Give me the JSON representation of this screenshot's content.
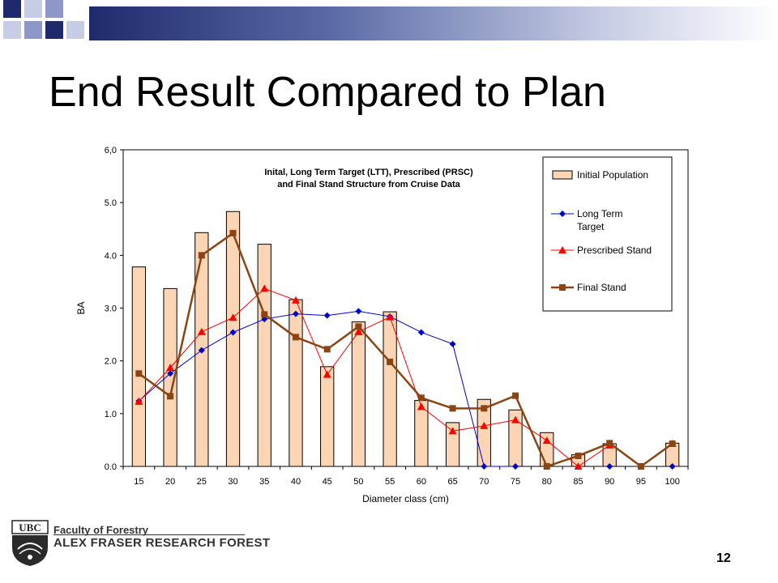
{
  "slide": {
    "title": "End Result Compared to Plan",
    "page_number": "12"
  },
  "footer": {
    "logo_text": "UBC",
    "faculty": "Faculty of Forestry",
    "research_forest": "ALEX FRASER RESEARCH FOREST"
  },
  "colors": {
    "title_bar": "#1f2a6d",
    "bar_fill": "#fcd5b4",
    "ltt": "#0000cc",
    "prsc": "#ff0000",
    "final": "#8b4513"
  },
  "chart_data": {
    "type": "bar",
    "title_lines": [
      "Inital, Long Term Target (LTT), Prescribed (PRSC)",
      "and Final Stand Structure from Cruise Data"
    ],
    "xlabel": "Diameter class (cm)",
    "ylabel": "BA",
    "ylim": [
      0,
      6
    ],
    "yticks": [
      "0.0",
      "1.0",
      "2.0",
      "3.0",
      "4.0",
      "5.0",
      "6,0"
    ],
    "y_tick_values": [
      0,
      1,
      2,
      3,
      4,
      5,
      6
    ],
    "grid": false,
    "legend_position": "top-right",
    "categories": [
      "15",
      "20",
      "25",
      "30",
      "35",
      "40",
      "45",
      "50",
      "55",
      "60",
      "65",
      "70",
      "75",
      "80",
      "85",
      "90",
      "95",
      "100"
    ],
    "series": [
      {
        "name": "Initial Population",
        "type": "bar",
        "color": "#fcd5b4",
        "values": [
          3.78,
          3.37,
          4.43,
          4.83,
          4.21,
          3.16,
          1.89,
          2.74,
          2.93,
          1.25,
          0.83,
          1.27,
          1.07,
          0.64,
          0.22,
          0.43,
          0.0,
          0.44
        ]
      },
      {
        "name": "Long Term Target",
        "type": "line",
        "marker": "diamond",
        "color": "#0000cc",
        "values": [
          1.24,
          1.76,
          2.2,
          2.54,
          2.79,
          2.89,
          2.86,
          2.94,
          2.84,
          2.54,
          2.32,
          0.0,
          0.0,
          null,
          null,
          0.0,
          null,
          0.0
        ]
      },
      {
        "name": "Prescribed Stand",
        "type": "line",
        "marker": "triangle",
        "color": "#ff0000",
        "values": [
          1.23,
          1.87,
          2.55,
          2.82,
          3.37,
          3.15,
          1.74,
          2.55,
          2.83,
          1.13,
          0.67,
          0.77,
          0.88,
          0.49,
          0.0,
          0.4,
          null,
          0.43
        ]
      },
      {
        "name": "Final Stand",
        "type": "line",
        "marker": "square",
        "color": "#8b4513",
        "values": [
          1.76,
          1.33,
          4.0,
          4.42,
          2.88,
          2.45,
          2.22,
          2.65,
          1.98,
          1.3,
          1.1,
          1.1,
          1.34,
          0.0,
          0.2,
          0.44,
          0.0,
          0.43
        ]
      }
    ]
  }
}
